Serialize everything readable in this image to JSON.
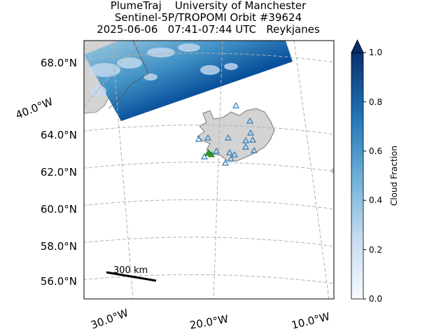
{
  "title": {
    "line1": "PlumeTraj    University of Manchester",
    "line2": "Sentinel-5P/TROPOMI Orbit #39624",
    "line3": "2025-06-06   07:41-07:44 UTC   Reykjanes"
  },
  "map": {
    "lat_labels": [
      "68.0°N",
      "64.0°N",
      "62.0°N",
      "60.0°N",
      "58.0°N",
      "56.0°N"
    ],
    "lon_labels": [
      "40.0°W",
      "30.0°W",
      "20.0°W",
      "10.0°W"
    ],
    "scale_bar": {
      "label": "300 km"
    },
    "colors": {
      "land": "#d3d3d3",
      "grid": "#b0b0b0",
      "station": "#2b7bba",
      "active": "#2ca02c"
    }
  },
  "colorbar": {
    "label": "Cloud Fraction",
    "ticks": [
      "1.0",
      "0.8",
      "0.6",
      "0.4",
      "0.2",
      "0.0"
    ],
    "min": 0.0,
    "max": 1.0,
    "colormap": [
      "#f7fbff",
      "#c6dbef",
      "#6baed6",
      "#2171b5",
      "#08306b"
    ]
  }
}
